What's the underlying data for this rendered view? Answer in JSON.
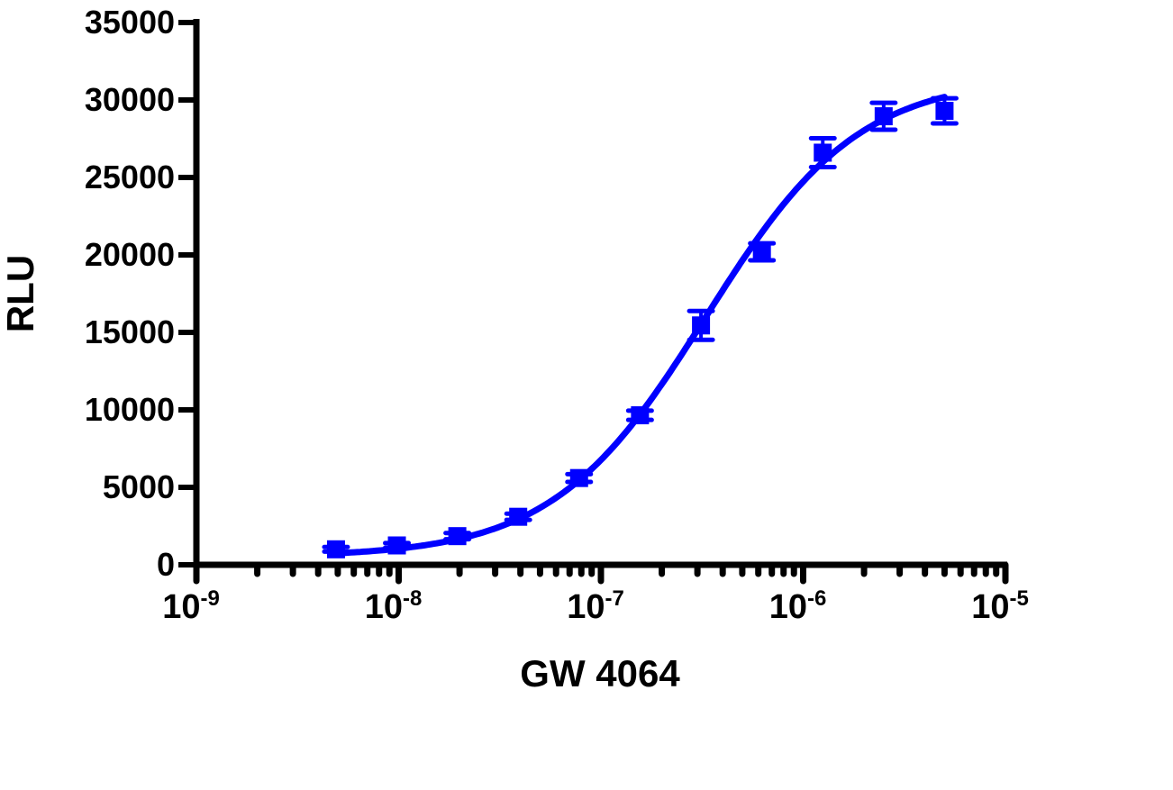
{
  "chart_data": {
    "type": "scatter",
    "title": "",
    "xlabel": "GW 4064",
    "ylabel": "RLU",
    "x_scale": "log",
    "xlim": [
      1e-09,
      1e-05
    ],
    "ylim": [
      0,
      35000
    ],
    "grid": false,
    "legend": "none",
    "color": "#0000FF",
    "x_tick_labels": [
      {
        "base": "10",
        "exp": "-9"
      },
      {
        "base": "10",
        "exp": "-8"
      },
      {
        "base": "10",
        "exp": "-7"
      },
      {
        "base": "10",
        "exp": "-6"
      },
      {
        "base": "10",
        "exp": "-5"
      }
    ],
    "y_tick_labels": [
      "0",
      "5000",
      "10000",
      "15000",
      "20000",
      "25000",
      "30000",
      "35000"
    ],
    "series": [
      {
        "marker": "square",
        "x": [
          4.9e-09,
          9.8e-09,
          1.95e-08,
          3.9e-08,
          7.8e-08,
          1.56e-07,
          3.125e-07,
          6.25e-07,
          1.25e-06,
          2.5e-06,
          5e-06
        ],
        "y": [
          1000,
          1250,
          1850,
          3100,
          5600,
          9650,
          15450,
          20200,
          26600,
          28950,
          29300
        ],
        "error": [
          150,
          150,
          200,
          200,
          250,
          300,
          930,
          550,
          930,
          870,
          810
        ]
      }
    ],
    "fit": {
      "model": "sigmoidal dose-response",
      "bottom": 500,
      "top": 31500,
      "ec50": 3.3e-07,
      "hill_slope": 1.15
    }
  }
}
